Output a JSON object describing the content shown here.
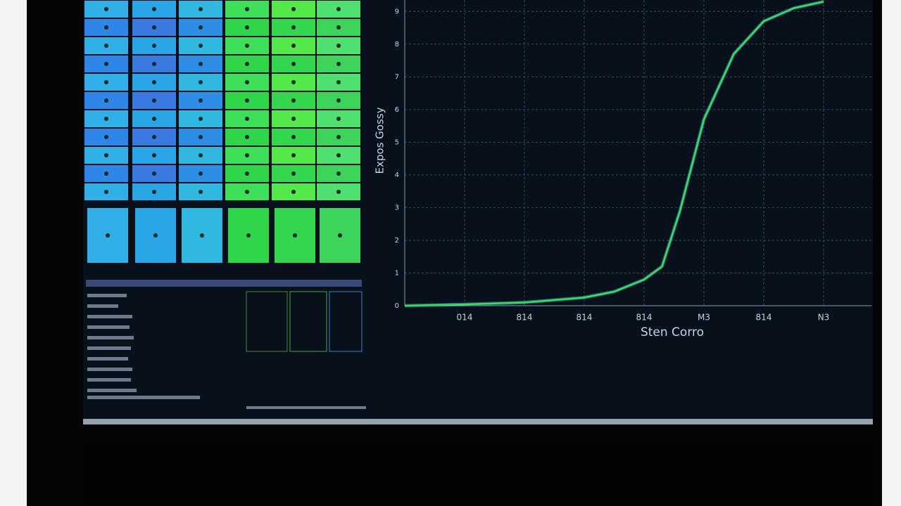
{
  "chart_data": {
    "type": "line",
    "x_label": "Sten Corro",
    "y_label": "Expos Gossy",
    "x": [
      0,
      1,
      2,
      3,
      3.5,
      4,
      4.3,
      4.6,
      5,
      5.5,
      6,
      6.5,
      7
    ],
    "series": [
      {
        "color": "#3ddc5a",
        "values": [
          0,
          0.04,
          0.1,
          0.25,
          0.43,
          0.8,
          1.2,
          2.9,
          5.7,
          7.7,
          8.7,
          9.1,
          9.3
        ]
      }
    ],
    "xlim": [
      0,
      7.8
    ],
    "xticks": [
      {
        "value": 1,
        "label": "014"
      },
      {
        "value": 2,
        "label": "814"
      },
      {
        "value": 3,
        "label": "814"
      },
      {
        "value": 4,
        "label": "814"
      },
      {
        "value": 5,
        "label": "M3"
      },
      {
        "value": 6,
        "label": "814"
      },
      {
        "value": 7,
        "label": "N3"
      }
    ],
    "ylim": [
      0,
      9.35
    ],
    "yticks": [
      0,
      1,
      2,
      3,
      4,
      5,
      6,
      7,
      8,
      9
    ],
    "grid": true
  }
}
